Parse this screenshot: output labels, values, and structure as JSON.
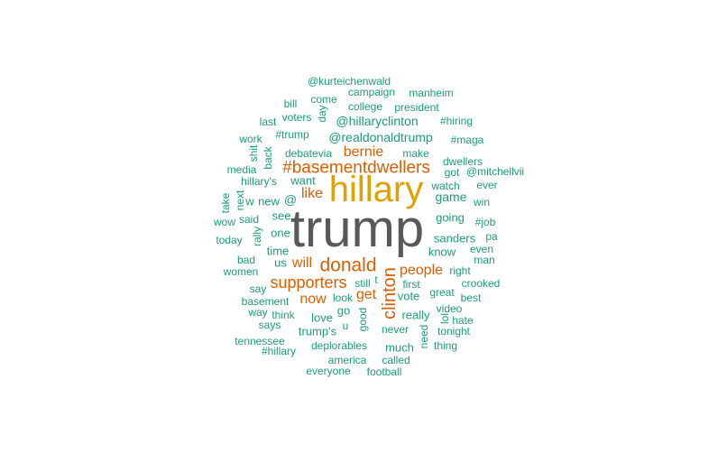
{
  "colors": {
    "background": "#ffffff",
    "tier_largest": "#595959",
    "tier_large": "#e0a100",
    "tier_medium": "#d95f02",
    "tier_small": "#1b9e77"
  },
  "words": [
    {
      "text": "trump",
      "tier": "tier_largest"
    },
    {
      "text": "hillary",
      "tier": "tier_large"
    },
    {
      "text": "#basementdwellers",
      "tier": "tier_medium"
    },
    {
      "text": "donald",
      "tier": "tier_medium"
    },
    {
      "text": "supporters",
      "tier": "tier_medium"
    },
    {
      "text": "clinton",
      "tier": "tier_medium"
    },
    {
      "text": "bernie",
      "tier": "tier_medium"
    },
    {
      "text": "people",
      "tier": "tier_medium"
    },
    {
      "text": "like",
      "tier": "tier_medium"
    },
    {
      "text": "will",
      "tier": "tier_medium"
    },
    {
      "text": "now",
      "tier": "tier_medium"
    },
    {
      "text": "get",
      "tier": "tier_medium"
    },
    {
      "text": "@kurteichenwald",
      "tier": "tier_small"
    },
    {
      "text": "campaign",
      "tier": "tier_small"
    },
    {
      "text": "manheim",
      "tier": "tier_small"
    },
    {
      "text": "bill",
      "tier": "tier_small"
    },
    {
      "text": "come",
      "tier": "tier_small"
    },
    {
      "text": "day",
      "tier": "tier_small"
    },
    {
      "text": "college",
      "tier": "tier_small"
    },
    {
      "text": "president",
      "tier": "tier_small"
    },
    {
      "text": "last",
      "tier": "tier_small"
    },
    {
      "text": "voters",
      "tier": "tier_small"
    },
    {
      "text": "@hillaryclinton",
      "tier": "tier_small"
    },
    {
      "text": "#hiring",
      "tier": "tier_small"
    },
    {
      "text": "work",
      "tier": "tier_small"
    },
    {
      "text": "#trump",
      "tier": "tier_small"
    },
    {
      "text": "@realdonaldtrump",
      "tier": "tier_small"
    },
    {
      "text": "#maga",
      "tier": "tier_small"
    },
    {
      "text": "shit",
      "tier": "tier_small"
    },
    {
      "text": "back",
      "tier": "tier_small"
    },
    {
      "text": "debatevia",
      "tier": "tier_small"
    },
    {
      "text": "make",
      "tier": "tier_small"
    },
    {
      "text": "dwellers",
      "tier": "tier_small"
    },
    {
      "text": "media",
      "tier": "tier_small"
    },
    {
      "text": "got",
      "tier": "tier_small"
    },
    {
      "text": "@mitchellvii",
      "tier": "tier_small"
    },
    {
      "text": "hillary's",
      "tier": "tier_small"
    },
    {
      "text": "want",
      "tier": "tier_small"
    },
    {
      "text": "watch",
      "tier": "tier_small"
    },
    {
      "text": "ever",
      "tier": "tier_small"
    },
    {
      "text": "take",
      "tier": "tier_small"
    },
    {
      "text": "next",
      "tier": "tier_small"
    },
    {
      "text": "w",
      "tier": "tier_small"
    },
    {
      "text": "new",
      "tier": "tier_small"
    },
    {
      "text": "@",
      "tier": "tier_small"
    },
    {
      "text": "game",
      "tier": "tier_small"
    },
    {
      "text": "win",
      "tier": "tier_small"
    },
    {
      "text": "see",
      "tier": "tier_small"
    },
    {
      "text": "wow",
      "tier": "tier_small"
    },
    {
      "text": "said",
      "tier": "tier_small"
    },
    {
      "text": "going",
      "tier": "tier_small"
    },
    {
      "text": "#job",
      "tier": "tier_small"
    },
    {
      "text": "rally",
      "tier": "tier_small"
    },
    {
      "text": "one",
      "tier": "tier_small"
    },
    {
      "text": "today",
      "tier": "tier_small"
    },
    {
      "text": "sanders",
      "tier": "tier_small"
    },
    {
      "text": "pa",
      "tier": "tier_small"
    },
    {
      "text": "time",
      "tier": "tier_small"
    },
    {
      "text": "know",
      "tier": "tier_small"
    },
    {
      "text": "even",
      "tier": "tier_small"
    },
    {
      "text": "bad",
      "tier": "tier_small"
    },
    {
      "text": "us",
      "tier": "tier_small"
    },
    {
      "text": "man",
      "tier": "tier_small"
    },
    {
      "text": "women",
      "tier": "tier_small"
    },
    {
      "text": "right",
      "tier": "tier_small"
    },
    {
      "text": "say",
      "tier": "tier_small"
    },
    {
      "text": "still",
      "tier": "tier_small"
    },
    {
      "text": "t",
      "tier": "tier_small"
    },
    {
      "text": "first",
      "tier": "tier_small"
    },
    {
      "text": "crooked",
      "tier": "tier_small"
    },
    {
      "text": "basement",
      "tier": "tier_small"
    },
    {
      "text": "look",
      "tier": "tier_small"
    },
    {
      "text": "vote",
      "tier": "tier_small"
    },
    {
      "text": "great",
      "tier": "tier_small"
    },
    {
      "text": "best",
      "tier": "tier_small"
    },
    {
      "text": "way",
      "tier": "tier_small"
    },
    {
      "text": "think",
      "tier": "tier_small"
    },
    {
      "text": "go",
      "tier": "tier_small"
    },
    {
      "text": "love",
      "tier": "tier_small"
    },
    {
      "text": "good",
      "tier": "tier_small"
    },
    {
      "text": "really",
      "tier": "tier_small"
    },
    {
      "text": "video",
      "tier": "tier_small"
    },
    {
      "text": "says",
      "tier": "tier_small"
    },
    {
      "text": "u",
      "tier": "tier_small"
    },
    {
      "text": "lol",
      "tier": "tier_small"
    },
    {
      "text": "hate",
      "tier": "tier_small"
    },
    {
      "text": "trump's",
      "tier": "tier_small"
    },
    {
      "text": "never",
      "tier": "tier_small"
    },
    {
      "text": "tonight",
      "tier": "tier_small"
    },
    {
      "text": "tennessee",
      "tier": "tier_small"
    },
    {
      "text": "need",
      "tier": "tier_small"
    },
    {
      "text": "deplorables",
      "tier": "tier_small"
    },
    {
      "text": "much",
      "tier": "tier_small"
    },
    {
      "text": "thing",
      "tier": "tier_small"
    },
    {
      "text": "#hillary",
      "tier": "tier_small"
    },
    {
      "text": "america",
      "tier": "tier_small"
    },
    {
      "text": "called",
      "tier": "tier_small"
    },
    {
      "text": "everyone",
      "tier": "tier_small"
    },
    {
      "text": "football",
      "tier": "tier_small"
    }
  ]
}
